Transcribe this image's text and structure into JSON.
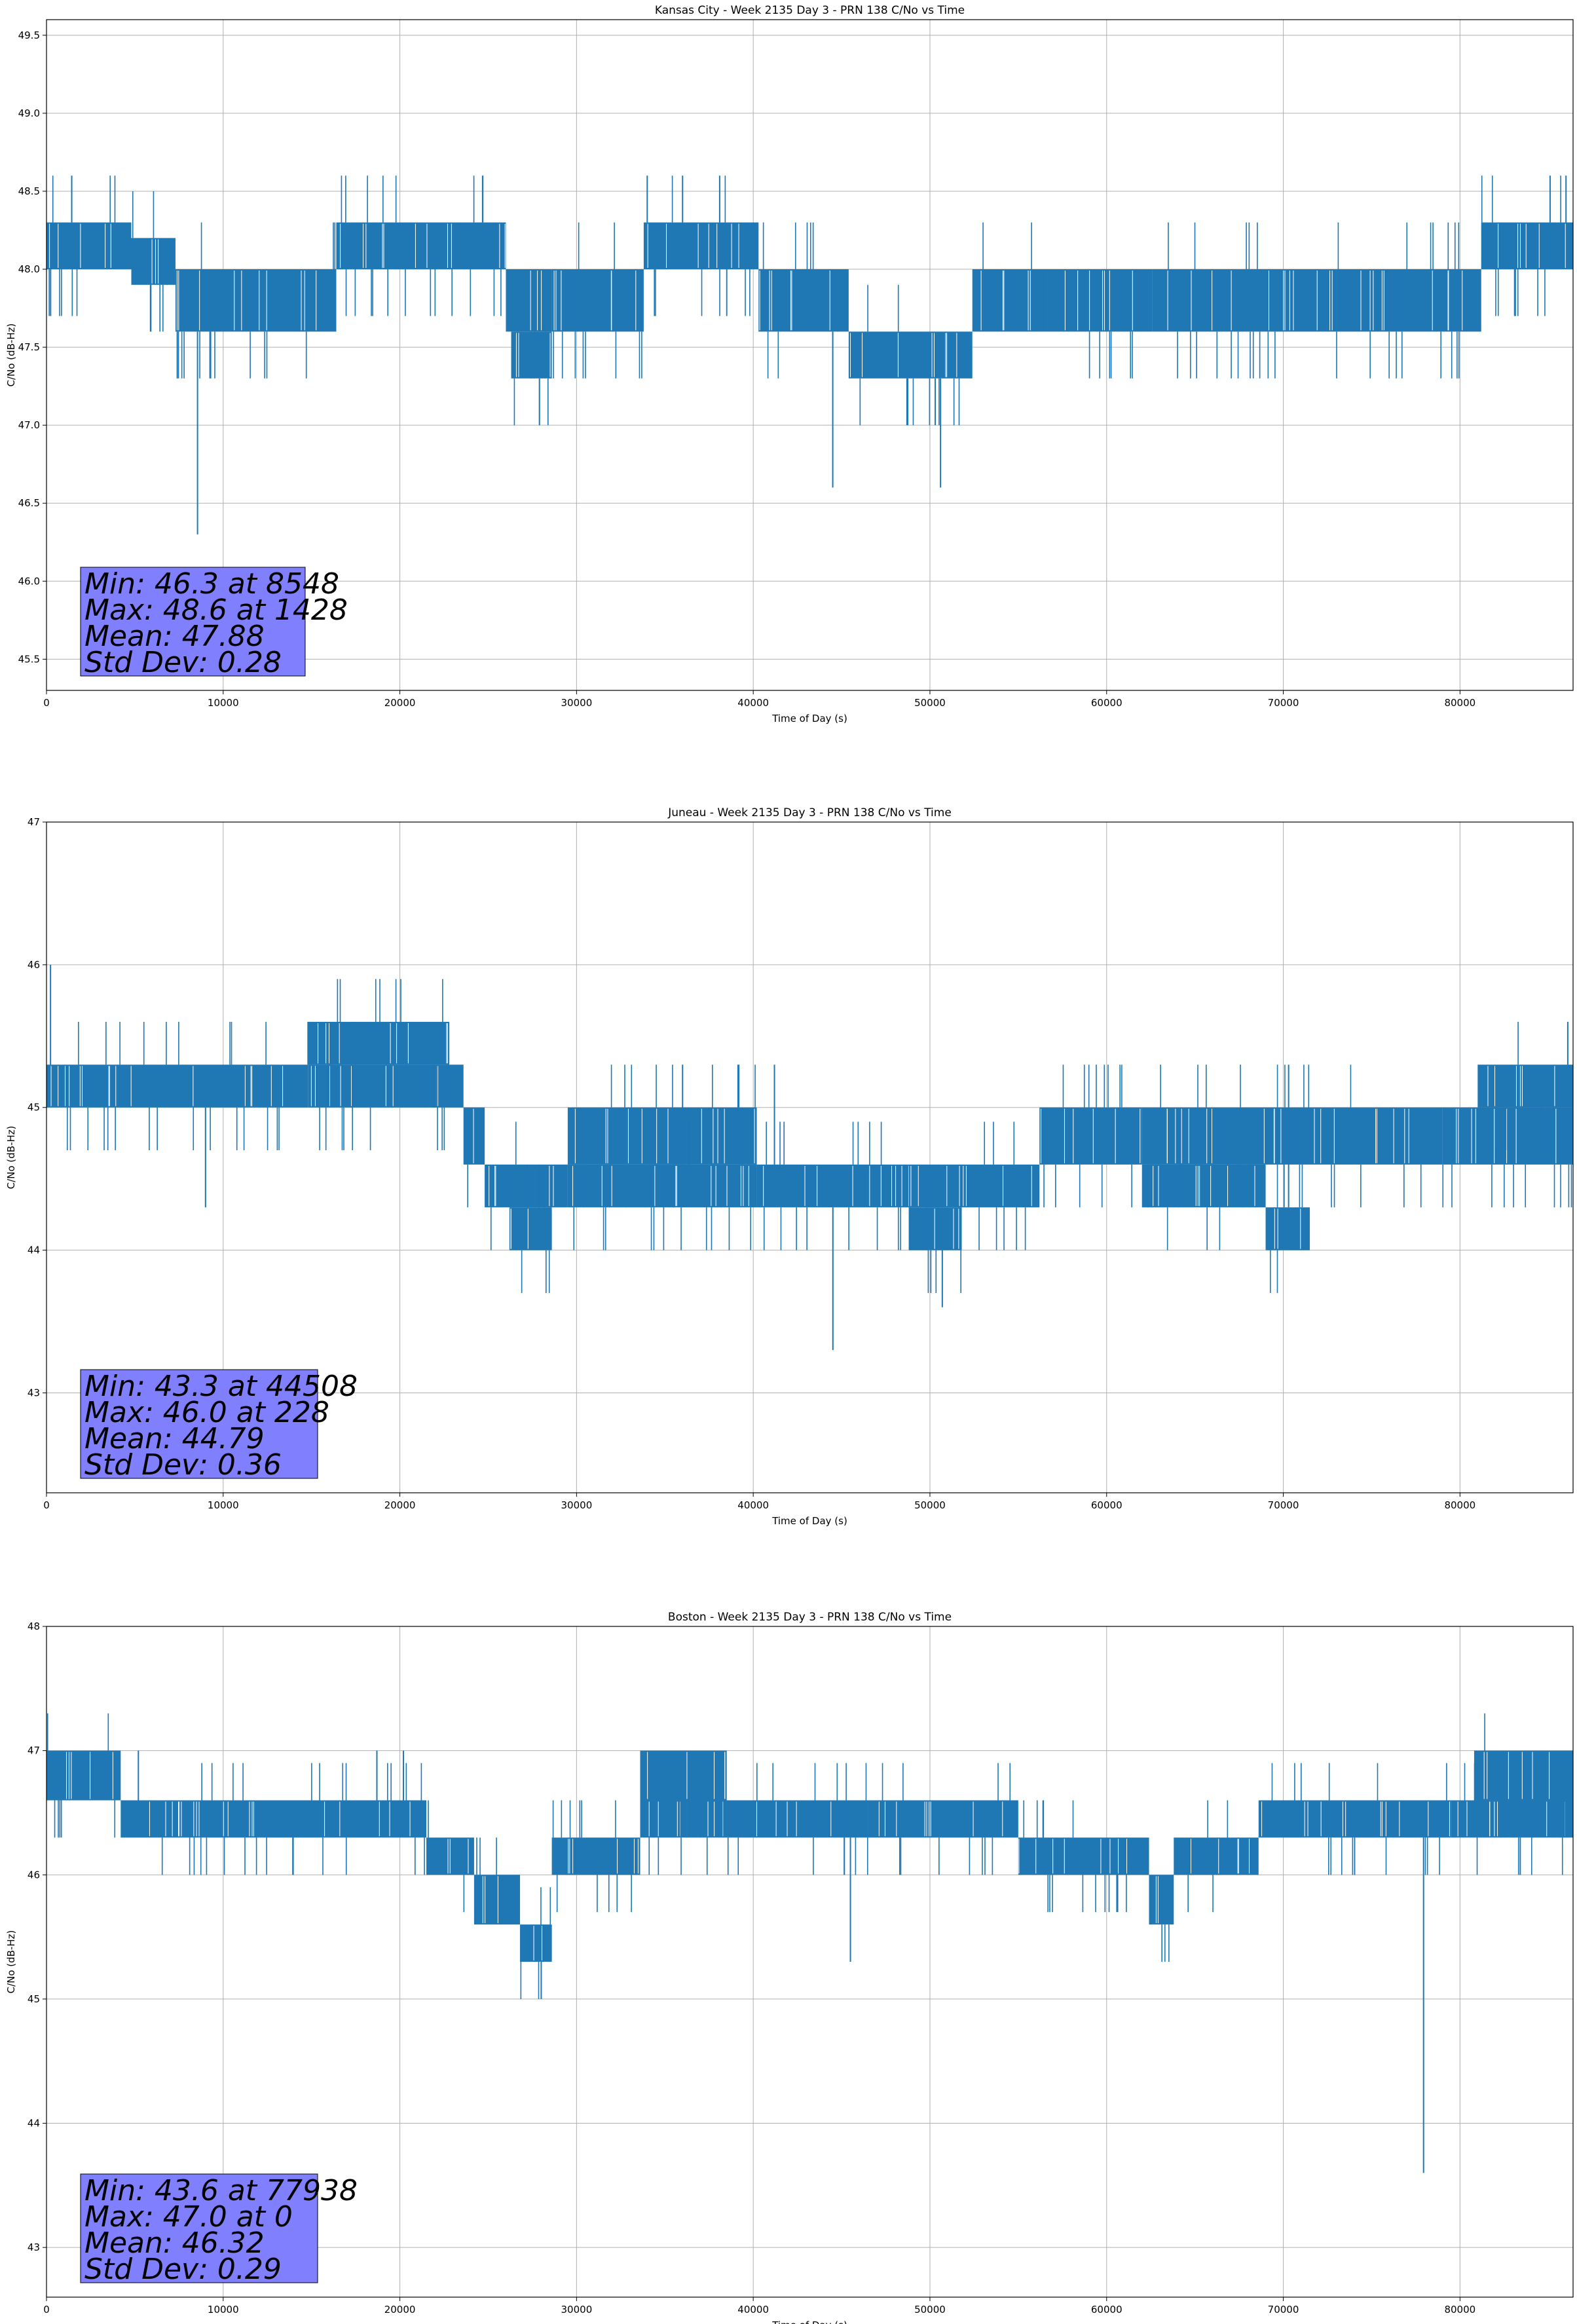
{
  "chart_data": [
    {
      "type": "line",
      "title": "Kansas City - Week 2135 Day 3 - PRN 138 C/No vs Time",
      "xlabel": "Time of Day (s)",
      "ylabel": "C/No (dB-Hz)",
      "xlim": [
        0,
        86400
      ],
      "ylim": [
        45.3,
        49.6
      ],
      "xticks": [
        0,
        10000,
        20000,
        30000,
        40000,
        50000,
        60000,
        70000,
        80000
      ],
      "yticks": [
        45.5,
        46.0,
        46.5,
        47.0,
        47.5,
        48.0,
        48.5,
        49.0,
        49.5
      ],
      "ytick_labels": [
        "45.5",
        "46.0",
        "46.5",
        "47.0",
        "47.5",
        "48.0",
        "48.5",
        "49.0",
        "49.5"
      ],
      "grid": true,
      "color": "#1f77b4",
      "stats_box_color": "#8080ff",
      "stats": [
        "Min: 46.3 at 8548",
        "Max: 48.6 at 1428",
        "Mean: 47.88",
        "Std Dev: 0.28"
      ],
      "series": [
        {
          "band_segments": [
            [
              0,
              4800,
              48.0,
              48.3
            ],
            [
              4800,
              7300,
              47.9,
              48.2
            ],
            [
              7300,
              16400,
              47.6,
              48.0
            ],
            [
              16400,
              26000,
              48.0,
              48.3
            ],
            [
              26000,
              28600,
              47.6,
              48.0
            ],
            [
              26300,
              28600,
              47.3,
              47.6
            ],
            [
              28600,
              33800,
              47.6,
              48.0
            ],
            [
              33800,
              40300,
              48.0,
              48.3
            ],
            [
              40300,
              45400,
              47.6,
              48.0
            ],
            [
              45400,
              52400,
              47.3,
              47.6
            ],
            [
              52400,
              56600,
              47.6,
              48.0
            ],
            [
              56600,
              62600,
              47.6,
              48.0
            ],
            [
              62600,
              73000,
              47.6,
              48.0
            ],
            [
              73000,
              81200,
              47.6,
              48.0
            ],
            [
              81200,
              86400,
              48.0,
              48.3
            ]
          ],
          "spikes": [
            [
              1428,
              48.6
            ],
            [
              8548,
              46.3
            ],
            [
              7400,
              47.3
            ],
            [
              27900,
              47.0
            ],
            [
              44500,
              46.6
            ],
            [
              48700,
              47.0
            ],
            [
              50600,
              46.6
            ],
            [
              50300,
              47.0
            ],
            [
              34000,
              48.6
            ],
            [
              36000,
              48.6
            ],
            [
              38100,
              48.6
            ],
            [
              85100,
              48.6
            ],
            [
              86000,
              48.6
            ]
          ]
        }
      ]
    },
    {
      "type": "line",
      "title": "Juneau - Week 2135 Day 3 - PRN 138 C/No vs Time",
      "xlabel": "Time of Day (s)",
      "ylabel": "C/No (dB-Hz)",
      "xlim": [
        0,
        86400
      ],
      "ylim": [
        42.3,
        47.0
      ],
      "xticks": [
        0,
        10000,
        20000,
        30000,
        40000,
        50000,
        60000,
        70000,
        80000
      ],
      "yticks": [
        43,
        44,
        45,
        46,
        47
      ],
      "ytick_labels": [
        "43",
        "44",
        "45",
        "46",
        "47"
      ],
      "grid": true,
      "color": "#1f77b4",
      "stats_box_color": "#8080ff",
      "stats": [
        "Min: 43.3 at 44508",
        "Max: 46.0 at 228",
        "Mean: 44.79",
        "Std Dev: 0.36"
      ],
      "series": [
        {
          "band_segments": [
            [
              0,
              14800,
              45.0,
              45.3
            ],
            [
              14800,
              23600,
              45.0,
              45.3
            ],
            [
              14800,
              22800,
              45.3,
              45.6
            ],
            [
              23600,
              24800,
              44.6,
              45.0
            ],
            [
              24800,
              29500,
              44.3,
              44.6
            ],
            [
              26200,
              28600,
              44.0,
              44.3
            ],
            [
              29500,
              40200,
              44.6,
              45.0
            ],
            [
              29500,
              40200,
              44.3,
              44.6
            ],
            [
              40200,
              48800,
              44.3,
              44.6
            ],
            [
              48800,
              51800,
              44.0,
              44.3
            ],
            [
              48800,
              56200,
              44.3,
              44.6
            ],
            [
              56200,
              62000,
              44.6,
              45.0
            ],
            [
              62000,
              69000,
              44.3,
              44.6
            ],
            [
              62000,
              79000,
              44.6,
              45.0
            ],
            [
              69000,
              71500,
              44.0,
              44.3
            ],
            [
              79000,
              86400,
              44.6,
              45.0
            ],
            [
              81000,
              86400,
              45.0,
              45.3
            ]
          ],
          "spikes": [
            [
              228,
              46.0
            ],
            [
              44508,
              43.3
            ],
            [
              50700,
              43.6
            ],
            [
              9000,
              44.3
            ],
            [
              36000,
              45.3
            ],
            [
              41200,
              45.3
            ],
            [
              70300,
              45.3
            ],
            [
              86100,
              45.6
            ]
          ]
        }
      ]
    },
    {
      "type": "line",
      "title": "Boston - Week 2135 Day 3 - PRN 138 C/No vs Time",
      "xlabel": "Time of Day (s)",
      "ylabel": "C/No (dB-Hz)",
      "xlim": [
        0,
        86400
      ],
      "ylim": [
        42.6,
        48.0
      ],
      "xticks": [
        0,
        10000,
        20000,
        30000,
        40000,
        50000,
        60000,
        70000,
        80000
      ],
      "yticks": [
        43,
        44,
        45,
        46,
        47,
        48
      ],
      "ytick_labels": [
        "43",
        "44",
        "45",
        "46",
        "47",
        "48"
      ],
      "grid": true,
      "color": "#1f77b4",
      "stats_box_color": "#8080ff",
      "stats": [
        "Min: 43.6 at 77938",
        "Max: 47.0 at 0",
        "Mean: 46.32",
        "Std Dev: 0.29"
      ],
      "series": [
        {
          "band_segments": [
            [
              0,
              4200,
              46.6,
              47.0
            ],
            [
              4200,
              21500,
              46.3,
              46.6
            ],
            [
              21500,
              24200,
              46.0,
              46.3
            ],
            [
              24200,
              26800,
              45.6,
              46.0
            ],
            [
              26800,
              28600,
              45.3,
              45.6
            ],
            [
              28600,
              33600,
              46.0,
              46.3
            ],
            [
              33600,
              46500,
              46.3,
              46.6
            ],
            [
              33600,
              38500,
              46.6,
              47.0
            ],
            [
              46500,
              55000,
              46.3,
              46.6
            ],
            [
              55000,
              62400,
              46.0,
              46.3
            ],
            [
              62400,
              63800,
              45.6,
              46.0
            ],
            [
              63800,
              68600,
              46.0,
              46.3
            ],
            [
              68600,
              79500,
              46.3,
              46.6
            ],
            [
              79500,
              86400,
              46.3,
              46.6
            ],
            [
              80800,
              86400,
              46.6,
              47.0
            ]
          ],
          "spikes": [
            [
              77938,
              43.6
            ],
            [
              28000,
              45.0
            ],
            [
              45500,
              45.3
            ],
            [
              60000,
              46.0
            ],
            [
              71500,
              46.6
            ],
            [
              18700,
              47.0
            ],
            [
              20200,
              47.0
            ],
            [
              5200,
              47.0
            ]
          ]
        }
      ]
    }
  ]
}
